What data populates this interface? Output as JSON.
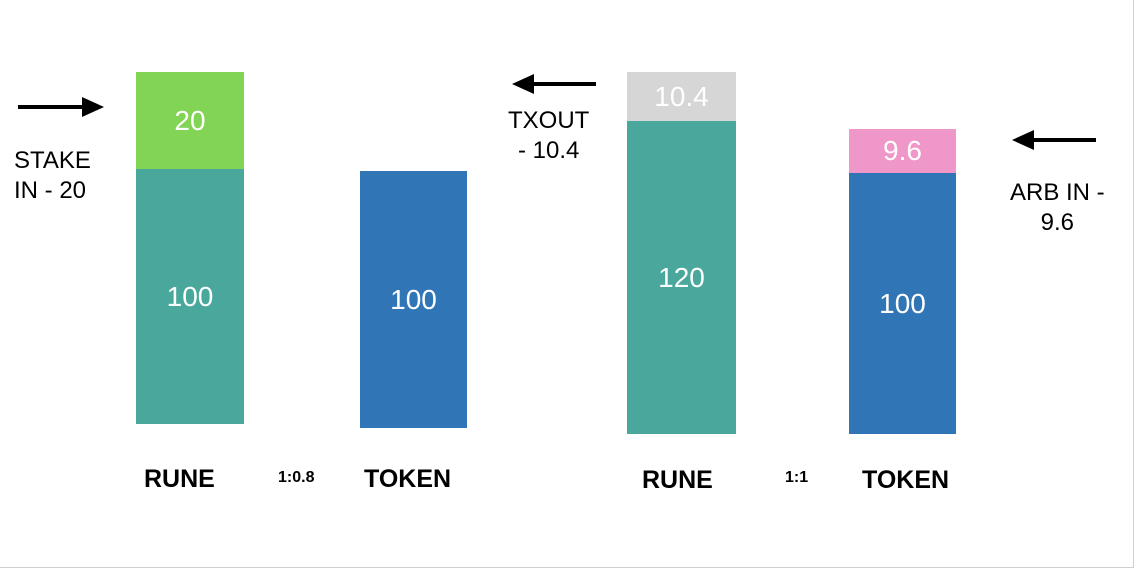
{
  "colors": {
    "rune": "#4aa79c",
    "token": "#3075b6",
    "stake": "#82d455",
    "txout": "#d6d6d6",
    "arb": "#ef97c8"
  },
  "icons": [
    "arrow-right-icon",
    "arrow-left-icon",
    "arrow-left-icon"
  ],
  "before": {
    "rune": {
      "base": "100",
      "added": "20",
      "label": "RUNE"
    },
    "token": {
      "base": "100",
      "label": "TOKEN"
    },
    "ratio": "1:0.8",
    "stake_note": {
      "line1": "STAKE",
      "line2": "IN - 20"
    }
  },
  "after": {
    "rune": {
      "base": "120",
      "removed": "10.4",
      "label": "RUNE"
    },
    "token": {
      "base": "100",
      "added": "9.6",
      "label": "TOKEN"
    },
    "ratio": "1:1",
    "txout_note": {
      "line1": "TXOUT",
      "line2": "- 10.4"
    },
    "arb_note": {
      "line1": "ARB IN -",
      "line2": "9.6"
    }
  }
}
